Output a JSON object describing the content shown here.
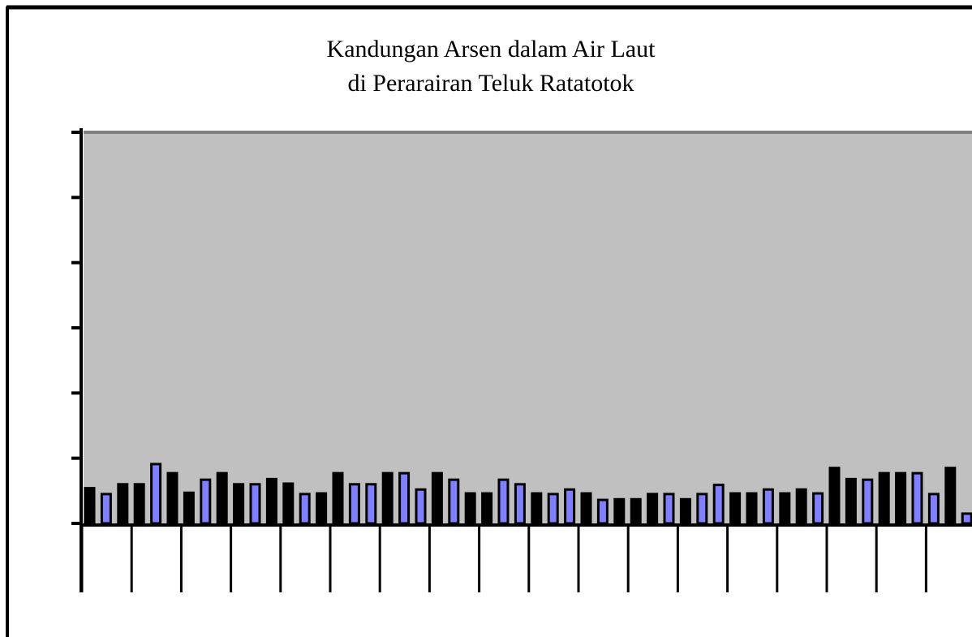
{
  "chart_data": {
    "type": "bar",
    "title": [
      "Kandungan Arsen dalam Air Laut",
      "di Perarairan Teluk Ratatotok"
    ],
    "categories": [
      null,
      null,
      null,
      null,
      null,
      null,
      null,
      null,
      null,
      null,
      null,
      null,
      null,
      null,
      null,
      null,
      null,
      null,
      null,
      null,
      null,
      null,
      null,
      null,
      null,
      null,
      null,
      null,
      null,
      null,
      null,
      null,
      null,
      null,
      null,
      null,
      null,
      null,
      null,
      null,
      null,
      null,
      null,
      null,
      null,
      null,
      null,
      null,
      null,
      null,
      null,
      null,
      null,
      null
    ],
    "values": [
      0.54,
      0.45,
      0.6,
      0.6,
      0.91,
      0.77,
      0.47,
      0.67,
      0.77,
      0.6,
      0.6,
      0.68,
      0.61,
      0.45,
      0.46,
      0.77,
      0.6,
      0.6,
      0.77,
      0.77,
      0.52,
      0.77,
      0.67,
      0.46,
      0.46,
      0.67,
      0.6,
      0.46,
      0.45,
      0.52,
      0.46,
      0.36,
      0.37,
      0.37,
      0.45,
      0.45,
      0.37,
      0.45,
      0.59,
      0.46,
      0.46,
      0.52,
      0.46,
      0.52,
      0.46,
      0.85,
      0.68,
      0.67,
      0.77,
      0.77,
      0.77,
      0.45,
      0.85,
      0.15
    ],
    "colors": [
      "#000000",
      "#8080ff",
      "#000000",
      "#000000",
      "#8080ff",
      "#000000",
      "#000000",
      "#8080ff",
      "#000000",
      "#000000",
      "#8080ff",
      "#000000",
      "#000000",
      "#8080ff",
      "#000000",
      "#000000",
      "#8080ff",
      "#8080ff",
      "#000000",
      "#8080ff",
      "#8080ff",
      "#000000",
      "#8080ff",
      "#000000",
      "#000000",
      "#8080ff",
      "#8080ff",
      "#000000",
      "#8080ff",
      "#8080ff",
      "#000000",
      "#8080ff",
      "#000000",
      "#000000",
      "#000000",
      "#8080ff",
      "#000000",
      "#8080ff",
      "#8080ff",
      "#000000",
      "#000000",
      "#8080ff",
      "#000000",
      "#000000",
      "#8080ff",
      "#000000",
      "#000000",
      "#8080ff",
      "#000000",
      "#000000",
      "#8080ff",
      "#8080ff",
      "#000000",
      "#8080ff"
    ],
    "ylim": [
      0,
      6
    ],
    "yticks": [
      0,
      1,
      2,
      3,
      4,
      5,
      6
    ],
    "background": "#c0c0c0"
  }
}
